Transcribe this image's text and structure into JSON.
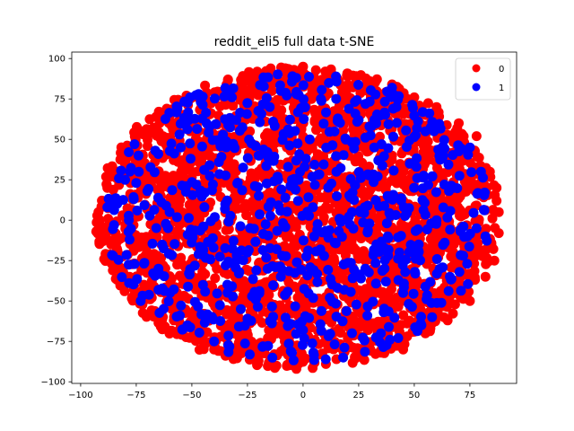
{
  "chart_data": {
    "type": "scatter",
    "title": "reddit_eli5 full data t-SNE",
    "xlabel": "",
    "ylabel": "",
    "xlim": [
      -104,
      96
    ],
    "ylim": [
      -101,
      104
    ],
    "xticks": [
      -100,
      -75,
      -50,
      -25,
      0,
      25,
      50,
      75
    ],
    "xtick_labels": [
      "−100",
      "−75",
      "−50",
      "−25",
      "0",
      "25",
      "50",
      "75"
    ],
    "yticks": [
      -100,
      -75,
      -50,
      -25,
      0,
      25,
      50,
      75,
      100
    ],
    "ytick_labels": [
      "−100",
      "−75",
      "−50",
      "−25",
      "0",
      "25",
      "50",
      "75",
      "100"
    ],
    "grid": false,
    "legend_position": "top-right",
    "cloud_extent": {
      "x_min": -93,
      "x_max": 88,
      "y_min": -92,
      "y_max": 95
    },
    "series": [
      {
        "name": "0",
        "color": "#ff0000",
        "points": [
          [
            -93,
            -7
          ],
          [
            -92,
            5
          ],
          [
            -90,
            -13
          ],
          [
            -88,
            20
          ],
          [
            -85,
            -22
          ],
          [
            -82,
            29
          ],
          [
            -78,
            -35
          ],
          [
            -72,
            40
          ],
          [
            -68,
            -48
          ],
          [
            -63,
            52
          ],
          [
            -58,
            -60
          ],
          [
            -55,
            61
          ],
          [
            -50,
            -72
          ],
          [
            -45,
            72
          ],
          [
            -40,
            -80
          ],
          [
            -35,
            80
          ],
          [
            -30,
            -85
          ],
          [
            -25,
            86
          ],
          [
            -20,
            -87
          ],
          [
            -15,
            92
          ],
          [
            -12,
            -90
          ],
          [
            -8,
            94
          ],
          [
            -3,
            -92
          ],
          [
            0,
            95
          ],
          [
            5,
            -88
          ],
          [
            10,
            92
          ],
          [
            15,
            -86
          ],
          [
            20,
            89
          ],
          [
            25,
            -84
          ],
          [
            30,
            86
          ],
          [
            35,
            -82
          ],
          [
            40,
            84
          ],
          [
            45,
            -80
          ],
          [
            50,
            76
          ],
          [
            55,
            -70
          ],
          [
            60,
            70
          ],
          [
            65,
            -62
          ],
          [
            70,
            60
          ],
          [
            75,
            -50
          ],
          [
            78,
            52
          ],
          [
            82,
            -35
          ],
          [
            84,
            30
          ],
          [
            86,
            -25
          ],
          [
            87,
            20
          ],
          [
            88,
            -8
          ],
          [
            88,
            5
          ],
          [
            87,
            12
          ],
          [
            -60,
            20
          ],
          [
            -40,
            -10
          ],
          [
            -20,
            30
          ],
          [
            0,
            0
          ],
          [
            20,
            -30
          ],
          [
            40,
            40
          ],
          [
            60,
            -20
          ],
          [
            -30,
            -50
          ],
          [
            30,
            50
          ],
          [
            -50,
            40
          ],
          [
            50,
            -45
          ],
          [
            -10,
            -60
          ],
          [
            10,
            60
          ],
          [
            -70,
            -20
          ],
          [
            70,
            15
          ]
        ]
      },
      {
        "name": "1",
        "color": "#0000ff",
        "points": [
          [
            -74,
            40
          ],
          [
            -73,
            -50
          ],
          [
            -70,
            18
          ],
          [
            -65,
            -30
          ],
          [
            -60,
            5
          ],
          [
            -55,
            45
          ],
          [
            -52,
            -65
          ],
          [
            -48,
            22
          ],
          [
            -45,
            -40
          ],
          [
            -42,
            58
          ],
          [
            -40,
            -75
          ],
          [
            -35,
            10
          ],
          [
            -30,
            62
          ],
          [
            -28,
            -55
          ],
          [
            -25,
            -20
          ],
          [
            -20,
            40
          ],
          [
            -18,
            -78
          ],
          [
            -15,
            70
          ],
          [
            -10,
            -35
          ],
          [
            -5,
            25
          ],
          [
            0,
            -68
          ],
          [
            3,
            50
          ],
          [
            5,
            -10
          ],
          [
            8,
            75
          ],
          [
            12,
            -48
          ],
          [
            15,
            30
          ],
          [
            18,
            -85
          ],
          [
            22,
            5
          ],
          [
            25,
            62
          ],
          [
            28,
            -30
          ],
          [
            32,
            45
          ],
          [
            35,
            -70
          ],
          [
            38,
            15
          ],
          [
            42,
            70
          ],
          [
            45,
            -45
          ],
          [
            48,
            35
          ],
          [
            52,
            -15
          ],
          [
            55,
            55
          ],
          [
            58,
            -60
          ],
          [
            60,
            0
          ],
          [
            63,
            40
          ],
          [
            66,
            -35
          ],
          [
            68,
            20
          ],
          [
            72,
            -22
          ],
          [
            75,
            45
          ],
          [
            78,
            -5
          ],
          [
            80,
            30
          ],
          [
            82,
            -10
          ],
          [
            -85,
            -3
          ],
          [
            -80,
            25
          ],
          [
            -78,
            -12
          ],
          [
            -88,
            8
          ],
          [
            40,
            82
          ],
          [
            -32,
            76
          ],
          [
            -10,
            80
          ],
          [
            -5,
            -82
          ]
        ]
      }
    ]
  }
}
